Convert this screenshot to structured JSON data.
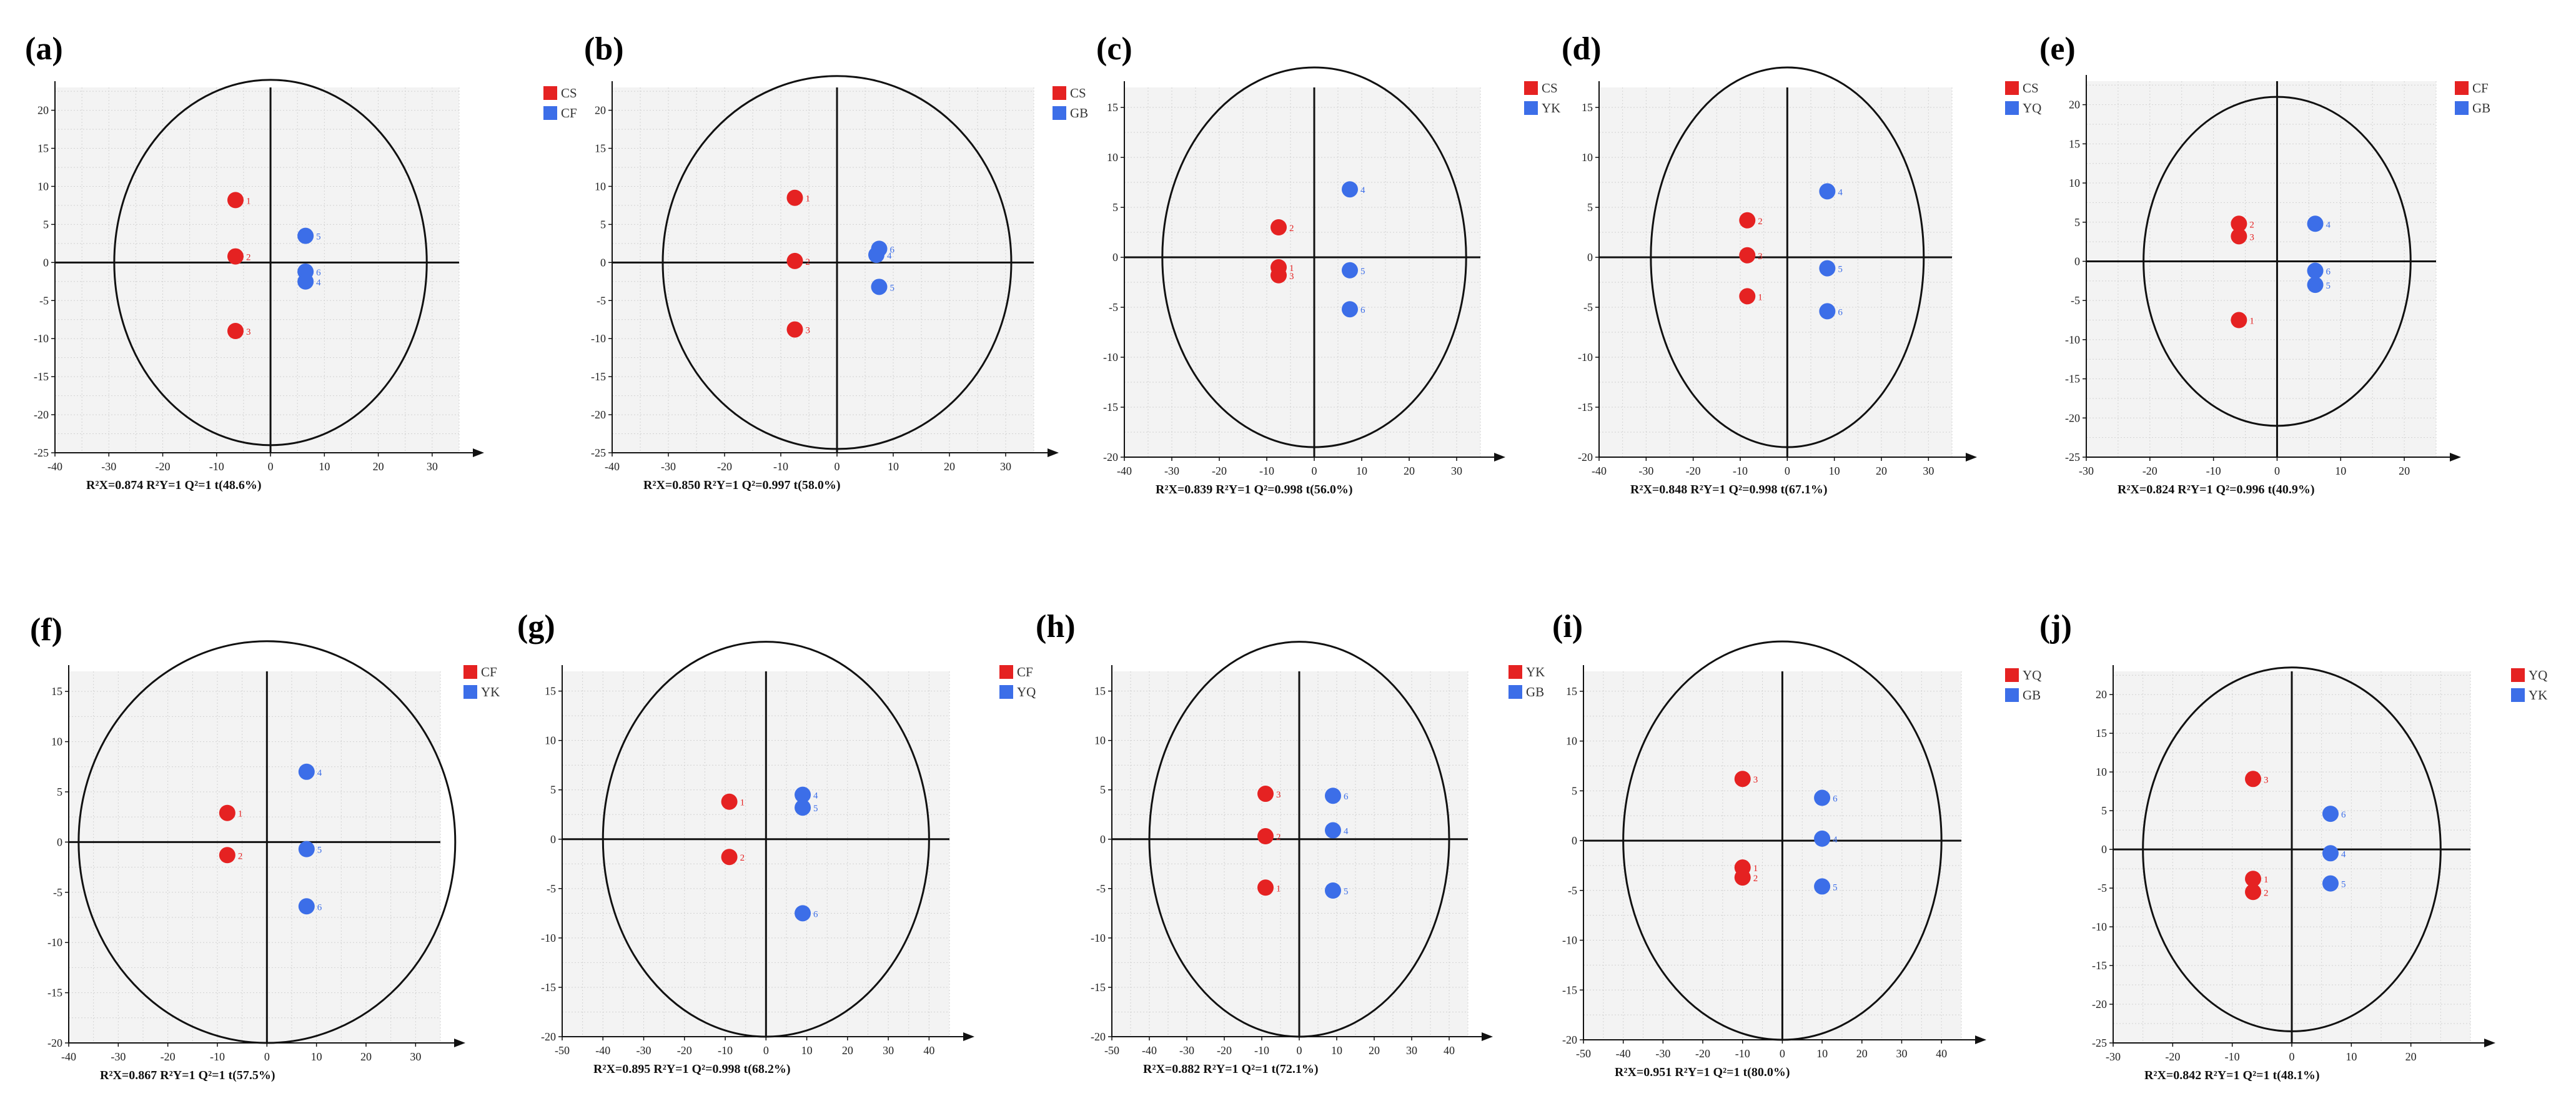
{
  "figure": {
    "colors": {
      "red": "#e52222",
      "blue": "#3c6ee8",
      "plot_bg": "#f3f3f3"
    },
    "chart_data": [
      {
        "panel": "(a)",
        "type": "scatter",
        "xlim": [
          -40,
          35
        ],
        "ylim": [
          -25,
          23
        ],
        "xticks": [
          "-40",
          "-30",
          "-20",
          "-10",
          "0",
          "10",
          "20",
          "30"
        ],
        "yticks": [
          "20",
          "15",
          "10",
          "5",
          "0",
          "-5",
          "-10",
          "-15",
          "-20",
          "-25"
        ],
        "ellipse": {
          "rx": 29,
          "ry": 24
        },
        "stats": "R²X=0.874   R²Y=1   Q²=1   t(48.6%)",
        "series": [
          {
            "name": "CS",
            "color": "red",
            "points": [
              {
                "x": -6.5,
                "y": 8.2,
                "label": "1"
              },
              {
                "x": -6.5,
                "y": 0.8,
                "label": "2"
              },
              {
                "x": -6.5,
                "y": -9.0,
                "label": "3"
              }
            ]
          },
          {
            "name": "CF",
            "color": "blue",
            "points": [
              {
                "x": 6.5,
                "y": 3.5,
                "label": "5"
              },
              {
                "x": 6.5,
                "y": -1.2,
                "label": "6"
              },
              {
                "x": 6.5,
                "y": -2.5,
                "label": "4"
              }
            ]
          }
        ]
      },
      {
        "panel": "(b)",
        "type": "scatter",
        "xlim": [
          -40,
          35
        ],
        "ylim": [
          -25,
          23
        ],
        "xticks": [
          "-40",
          "-30",
          "-20",
          "-10",
          "0",
          "10",
          "20",
          "30"
        ],
        "yticks": [
          "20",
          "15",
          "10",
          "5",
          "0",
          "-5",
          "-10",
          "-15",
          "-20",
          "-25"
        ],
        "ellipse": {
          "rx": 31,
          "ry": 24.5
        },
        "stats": "R²X=0.850   R²Y=1   Q²=0.997   t(58.0%)",
        "series": [
          {
            "name": "CS",
            "color": "red",
            "points": [
              {
                "x": -7.5,
                "y": 8.5,
                "label": "1"
              },
              {
                "x": -7.5,
                "y": 0.2,
                "label": "2"
              },
              {
                "x": -7.5,
                "y": -8.8,
                "label": "3"
              }
            ]
          },
          {
            "name": "GB",
            "color": "blue",
            "points": [
              {
                "x": 7.5,
                "y": 1.8,
                "label": "6"
              },
              {
                "x": 7.0,
                "y": 1.0,
                "label": "4"
              },
              {
                "x": 7.5,
                "y": -3.2,
                "label": "5"
              }
            ]
          }
        ]
      },
      {
        "panel": "(c)",
        "type": "scatter",
        "xlim": [
          -40,
          35
        ],
        "ylim": [
          -20,
          17
        ],
        "xticks": [
          "-40",
          "-30",
          "-20",
          "-10",
          "0",
          "10",
          "20",
          "30"
        ],
        "yticks": [
          "15",
          "10",
          "5",
          "0",
          "-5",
          "-10",
          "-15",
          "-20"
        ],
        "ellipse": {
          "rx": 32,
          "ry": 19
        },
        "stats": "R²X=0.839   R²Y=1   Q²=0.998   t(56.0%)",
        "series": [
          {
            "name": "CS",
            "color": "red",
            "points": [
              {
                "x": -7.5,
                "y": 3.0,
                "label": "2"
              },
              {
                "x": -7.5,
                "y": -1.0,
                "label": "1"
              },
              {
                "x": -7.5,
                "y": -1.8,
                "label": "3"
              }
            ]
          },
          {
            "name": "YK",
            "color": "blue",
            "points": [
              {
                "x": 7.5,
                "y": 6.8,
                "label": "4"
              },
              {
                "x": 7.5,
                "y": -1.3,
                "label": "5"
              },
              {
                "x": 7.5,
                "y": -5.2,
                "label": "6"
              }
            ]
          }
        ]
      },
      {
        "panel": "(d)",
        "type": "scatter",
        "xlim": [
          -40,
          35
        ],
        "ylim": [
          -20,
          17
        ],
        "xticks": [
          "-40",
          "-30",
          "-20",
          "-10",
          "0",
          "10",
          "20",
          "30"
        ],
        "yticks": [
          "15",
          "10",
          "5",
          "0",
          "-5",
          "-10",
          "-15",
          "-20"
        ],
        "ellipse": {
          "rx": 29,
          "ry": 19
        },
        "stats": "R²X=0.848   R²Y=1   Q²=0.998   t(67.1%)",
        "series": [
          {
            "name": "CS",
            "color": "red",
            "points": [
              {
                "x": -8.5,
                "y": 3.7,
                "label": "2"
              },
              {
                "x": -8.5,
                "y": 0.2,
                "label": "3"
              },
              {
                "x": -8.5,
                "y": -3.9,
                "label": "1"
              }
            ]
          },
          {
            "name": "YQ",
            "color": "blue",
            "points": [
              {
                "x": 8.5,
                "y": 6.6,
                "label": "4"
              },
              {
                "x": 8.5,
                "y": -1.1,
                "label": "5"
              },
              {
                "x": 8.5,
                "y": -5.4,
                "label": "6"
              }
            ]
          }
        ]
      },
      {
        "panel": "(e)",
        "type": "scatter",
        "xlim": [
          -30,
          25
        ],
        "ylim": [
          -25,
          23
        ],
        "xticks": [
          "-30",
          "-20",
          "-10",
          "0",
          "10",
          "20"
        ],
        "yticks": [
          "20",
          "15",
          "10",
          "5",
          "0",
          "-5",
          "-10",
          "-15",
          "-20",
          "-25"
        ],
        "ellipse": {
          "rx": 21,
          "ry": 21
        },
        "stats": "R²X=0.824   R²Y=1   Q²=0.996   t(40.9%)",
        "series": [
          {
            "name": "CF",
            "color": "red",
            "points": [
              {
                "x": -6.0,
                "y": 4.8,
                "label": "2"
              },
              {
                "x": -6.0,
                "y": 3.2,
                "label": "3"
              },
              {
                "x": -6.0,
                "y": -7.5,
                "label": "1"
              }
            ]
          },
          {
            "name": "GB",
            "color": "blue",
            "points": [
              {
                "x": 6.0,
                "y": 4.8,
                "label": "4"
              },
              {
                "x": 6.0,
                "y": -1.2,
                "label": "6"
              },
              {
                "x": 6.0,
                "y": -3.0,
                "label": "5"
              }
            ]
          }
        ]
      },
      {
        "panel": "(f)",
        "type": "scatter",
        "xlim": [
          -40,
          35
        ],
        "ylim": [
          -20,
          17
        ],
        "xticks": [
          "-40",
          "-30",
          "-20",
          "-10",
          "0",
          "10",
          "20",
          "30"
        ],
        "yticks": [
          "15",
          "10",
          "5",
          "0",
          "-5",
          "-10",
          "-15",
          "-20"
        ],
        "ellipse": {
          "rx": 38,
          "ry": 20
        },
        "stats": "R²X=0.867   R²Y=1   Q²=1   t(57.5%)",
        "series": [
          {
            "name": "CF",
            "color": "red",
            "points": [
              {
                "x": -8.0,
                "y": 2.9,
                "label": "1"
              },
              {
                "x": -8.0,
                "y": -1.3,
                "label": "2"
              }
            ]
          },
          {
            "name": "YK",
            "color": "blue",
            "points": [
              {
                "x": 8.0,
                "y": 7.0,
                "label": "4"
              },
              {
                "x": 8.0,
                "y": -0.7,
                "label": "5"
              },
              {
                "x": 8.0,
                "y": -6.4,
                "label": "6"
              }
            ]
          }
        ]
      },
      {
        "panel": "(g)",
        "type": "scatter",
        "xlim": [
          -50,
          45
        ],
        "ylim": [
          -20,
          17
        ],
        "xticks": [
          "-50",
          "-40",
          "-30",
          "-20",
          "-10",
          "0",
          "10",
          "20",
          "30",
          "40"
        ],
        "yticks": [
          "15",
          "10",
          "5",
          "0",
          "-5",
          "-10",
          "-15",
          "-20"
        ],
        "ellipse": {
          "rx": 40,
          "ry": 20
        },
        "stats": "R²X=0.895   R²Y=1   Q²=0.998   t(68.2%)",
        "series": [
          {
            "name": "CF",
            "color": "red",
            "points": [
              {
                "x": -9.0,
                "y": 3.8,
                "label": "1"
              },
              {
                "x": -9.0,
                "y": -1.8,
                "label": "2"
              }
            ]
          },
          {
            "name": "YQ",
            "color": "blue",
            "points": [
              {
                "x": 9.0,
                "y": 4.5,
                "label": "4"
              },
              {
                "x": 9.0,
                "y": 3.2,
                "label": "5"
              },
              {
                "x": 9.0,
                "y": -7.5,
                "label": "6"
              }
            ]
          }
        ]
      },
      {
        "panel": "(h)",
        "type": "scatter",
        "xlim": [
          -50,
          45
        ],
        "ylim": [
          -20,
          17
        ],
        "xticks": [
          "-50",
          "-40",
          "-30",
          "-20",
          "-10",
          "0",
          "10",
          "20",
          "30",
          "40"
        ],
        "yticks": [
          "15",
          "10",
          "5",
          "0",
          "-5",
          "-10",
          "-15",
          "-20"
        ],
        "ellipse": {
          "rx": 40,
          "ry": 20
        },
        "stats": "R²X=0.882   R²Y=1   Q²=1   t(72.1%)",
        "series": [
          {
            "name": "YK",
            "color": "red",
            "points": [
              {
                "x": -9.0,
                "y": 4.6,
                "label": "3"
              },
              {
                "x": -9.0,
                "y": 0.3,
                "label": "2"
              },
              {
                "x": -9.0,
                "y": -4.9,
                "label": "1"
              }
            ]
          },
          {
            "name": "GB",
            "color": "blue",
            "points": [
              {
                "x": 9.0,
                "y": 4.4,
                "label": "6"
              },
              {
                "x": 9.0,
                "y": 0.9,
                "label": "4"
              },
              {
                "x": 9.0,
                "y": -5.2,
                "label": "5"
              }
            ]
          }
        ]
      },
      {
        "panel": "(i)",
        "type": "scatter",
        "xlim": [
          -50,
          45
        ],
        "ylim": [
          -20,
          17
        ],
        "xticks": [
          "-50",
          "-40",
          "-30",
          "-20",
          "-10",
          "0",
          "10",
          "20",
          "30",
          "40"
        ],
        "yticks": [
          "15",
          "10",
          "5",
          "0",
          "-5",
          "-10",
          "-15",
          "-20"
        ],
        "ellipse": {
          "rx": 40,
          "ry": 20
        },
        "stats": "R²X=0.951   R²Y=1   Q²=1   t(80.0%)",
        "series": [
          {
            "name": "YQ",
            "color": "red",
            "points": [
              {
                "x": -10.0,
                "y": 6.2,
                "label": "3"
              },
              {
                "x": -10.0,
                "y": -2.7,
                "label": "1"
              },
              {
                "x": -10.0,
                "y": -3.7,
                "label": "2"
              }
            ]
          },
          {
            "name": "GB",
            "color": "blue",
            "points": [
              {
                "x": 10.0,
                "y": 4.3,
                "label": "6"
              },
              {
                "x": 10.0,
                "y": 0.2,
                "label": "4"
              },
              {
                "x": 10.0,
                "y": -4.6,
                "label": "5"
              }
            ]
          }
        ]
      },
      {
        "panel": "(j)",
        "type": "scatter",
        "xlim": [
          -30,
          30
        ],
        "ylim": [
          -25,
          23
        ],
        "xticks": [
          "-30",
          "-20",
          "-10",
          "0",
          "10",
          "20"
        ],
        "yticks": [
          "20",
          "15",
          "10",
          "5",
          "0",
          "-5",
          "-10",
          "-15",
          "-20",
          "-25"
        ],
        "ellipse": {
          "rx": 25,
          "ry": 23.5
        },
        "stats": "R²X=0.842   R²Y=1   Q²=1   t(48.1%)",
        "series": [
          {
            "name": "YQ",
            "color": "red",
            "points": [
              {
                "x": -6.5,
                "y": 9.1,
                "label": "3"
              },
              {
                "x": -6.5,
                "y": -3.8,
                "label": "1"
              },
              {
                "x": -6.5,
                "y": -5.5,
                "label": "2"
              }
            ]
          },
          {
            "name": "YK",
            "color": "blue",
            "points": [
              {
                "x": 6.5,
                "y": 4.6,
                "label": "6"
              },
              {
                "x": 6.5,
                "y": -0.5,
                "label": "4"
              },
              {
                "x": 6.5,
                "y": -4.4,
                "label": "5"
              }
            ]
          }
        ]
      }
    ]
  }
}
